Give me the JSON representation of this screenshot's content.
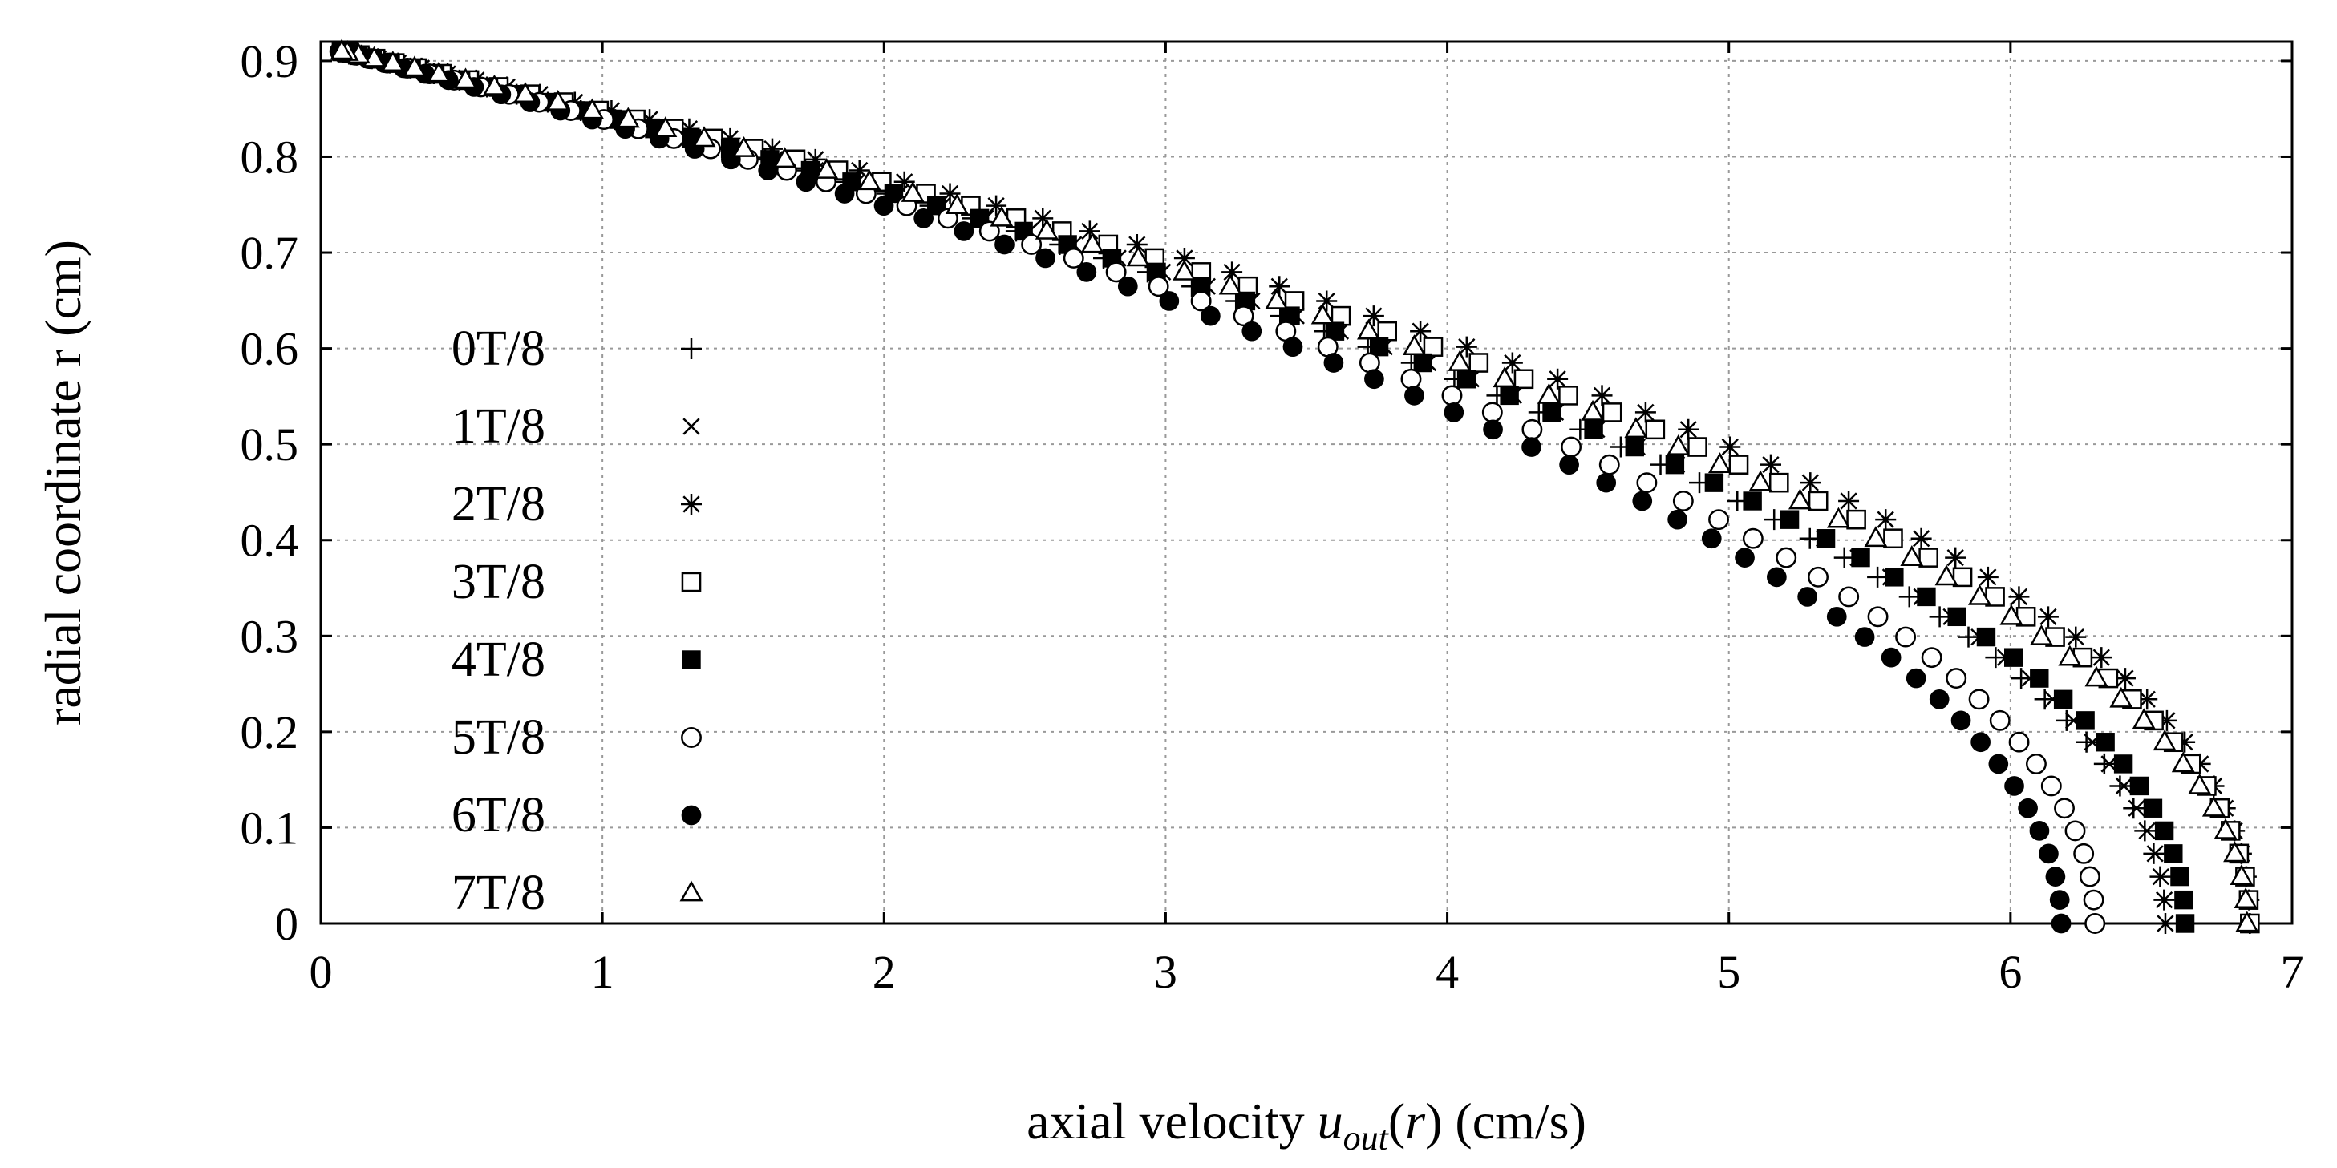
{
  "chart_data": {
    "type": "scatter",
    "title": "",
    "xlabel": "axial velocity",
    "xlabel_math": {
      "symbol": "u",
      "subscript": "out",
      "argument": "r",
      "units": "(cm/s)"
    },
    "ylabel": "radial coordinate r (cm)",
    "xlim": [
      0,
      7
    ],
    "ylim": [
      0,
      0.92
    ],
    "xticks": [
      0,
      1,
      2,
      3,
      4,
      5,
      6,
      7
    ],
    "yticks": [
      0,
      0.1,
      0.2,
      0.3,
      0.4,
      0.5,
      0.6,
      0.7,
      0.8,
      0.9
    ],
    "grid": true,
    "legend_position": "left",
    "series": [
      {
        "name": "0T/8",
        "marker": "plus",
        "umax": 6.55,
        "power": 2.0
      },
      {
        "name": "1T/8",
        "marker": "cross",
        "umax": 6.55,
        "power": 2.05
      },
      {
        "name": "2T/8",
        "marker": "star",
        "umax": 6.85,
        "power": 2.15
      },
      {
        "name": "3T/8",
        "marker": "open-square",
        "umax": 6.85,
        "power": 2.05
      },
      {
        "name": "4T/8",
        "marker": "filled-square",
        "umax": 6.62,
        "power": 2.0
      },
      {
        "name": "5T/8",
        "marker": "open-circle",
        "umax": 6.3,
        "power": 2.0
      },
      {
        "name": "6T/8",
        "marker": "filled-circle",
        "umax": 6.18,
        "power": 1.95
      },
      {
        "name": "7T/8",
        "marker": "open-triangle",
        "umax": 6.84,
        "power": 2.0
      }
    ],
    "profile": {
      "R": 0.915,
      "r_min": 0.0,
      "r_max": 0.91,
      "points_per_series": 60
    }
  }
}
